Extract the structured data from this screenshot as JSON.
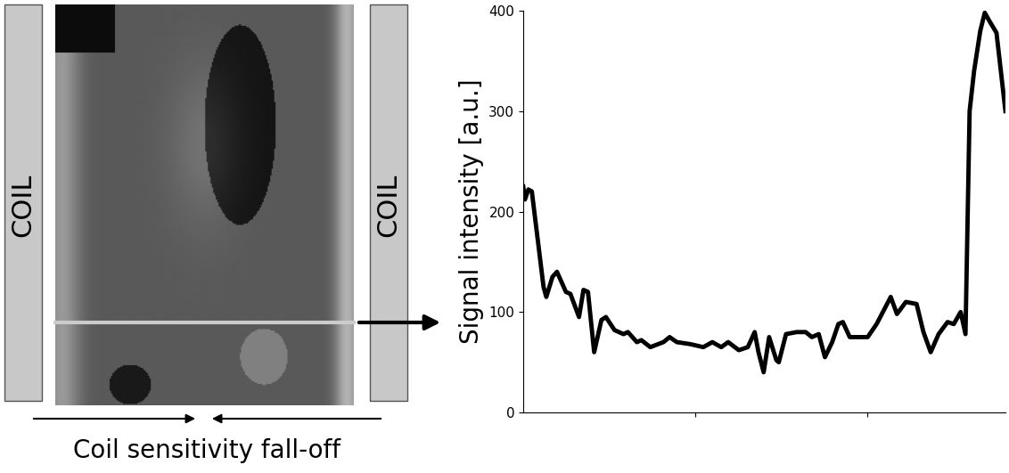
{
  "chart_data": {
    "type": "line",
    "ylabel": "Signal intensity [a.u.]",
    "x": [
      0,
      0.5,
      1.5,
      2.5,
      5.9,
      6.7,
      8.5,
      9.8,
      12.4,
      13.7,
      16.2,
      17.5,
      18.8,
      20.6,
      22.7,
      24,
      26.5,
      29.1,
      30.4,
      33,
      34.3,
      36.9,
      40.7,
      42.5,
      44.6,
      48.5,
      52.3,
      54.9,
      57.5,
      59.5,
      62.6,
      65.2,
      67.2,
      68.3,
      69.8,
      71.4,
      73.5,
      74.2,
      76.3,
      79.4,
      82,
      83.8,
      85.8,
      87.6,
      89.7,
      91.5,
      92.8,
      94.8,
      97.4,
      100,
      102.6,
      106.7,
      108.5,
      111.1,
      114.2,
      116.2,
      118.3,
      120.6,
      123.2,
      125,
      127,
      128.4,
      129.6,
      130.9,
      132.7,
      134,
      135.3,
      137.4,
      140
    ],
    "values": [
      225,
      212,
      222,
      220,
      125,
      115,
      135,
      140,
      120,
      118,
      95,
      122,
      120,
      60,
      92,
      95,
      82,
      78,
      80,
      70,
      72,
      65,
      70,
      75,
      70,
      68,
      65,
      70,
      65,
      70,
      62,
      65,
      80,
      60,
      40,
      75,
      52,
      50,
      78,
      80,
      80,
      75,
      78,
      55,
      70,
      88,
      90,
      75,
      75,
      75,
      88,
      115,
      98,
      110,
      108,
      80,
      60,
      78,
      90,
      88,
      100,
      78,
      300,
      340,
      380,
      398,
      390,
      378,
      300
    ],
    "color": "#000000",
    "xlim": [
      0,
      140
    ],
    "xticks": [
      50,
      100
    ],
    "ylim": [
      0,
      400
    ],
    "yticks": [
      0,
      100,
      200,
      300,
      400
    ],
    "tick_labels": "y",
    "annotations": [
      "COIL",
      "COIL",
      "Coil sensitivity fall-off"
    ]
  }
}
